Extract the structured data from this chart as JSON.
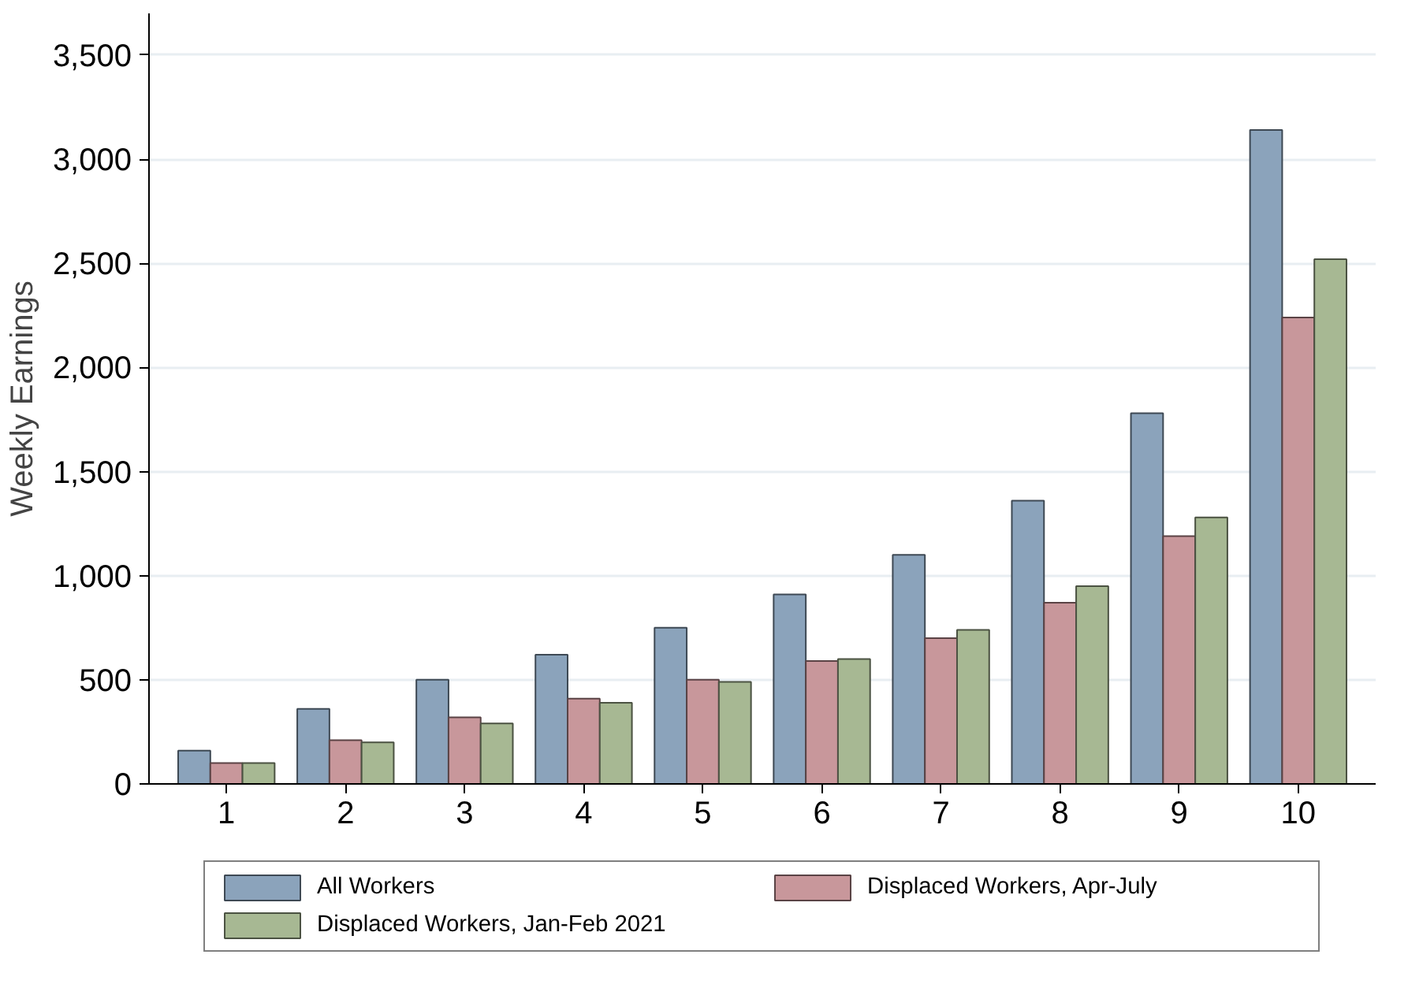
{
  "chart_data": {
    "type": "bar",
    "ylabel": "Weekly Earnings",
    "categories": [
      "1",
      "2",
      "3",
      "4",
      "5",
      "6",
      "7",
      "8",
      "9",
      "10"
    ],
    "series": [
      {
        "name": "All Workers",
        "color": "#8ba3bb",
        "values": [
          160,
          360,
          500,
          620,
          750,
          910,
          1100,
          1360,
          1780,
          3140
        ]
      },
      {
        "name": "Displaced Workers, Apr-July",
        "color": "#c8979b",
        "values": [
          100,
          210,
          320,
          410,
          500,
          590,
          700,
          870,
          1190,
          2240
        ]
      },
      {
        "name": "Displaced Workers, Jan-Feb 2021",
        "color": "#a7b893",
        "values": [
          100,
          200,
          290,
          390,
          490,
          600,
          740,
          950,
          1280,
          2520
        ]
      }
    ],
    "ylim": [
      0,
      3700
    ],
    "yticks": [
      {
        "value": 0,
        "label": "0"
      },
      {
        "value": 500,
        "label": "500"
      },
      {
        "value": 1000,
        "label": "1,000"
      },
      {
        "value": 1500,
        "label": "1,500"
      },
      {
        "value": 2000,
        "label": "2,000"
      },
      {
        "value": 2500,
        "label": "2,500"
      },
      {
        "value": 3000,
        "label": "3,000"
      },
      {
        "value": 3500,
        "label": "3,500"
      }
    ],
    "grid": "y",
    "legend": "bottom"
  }
}
